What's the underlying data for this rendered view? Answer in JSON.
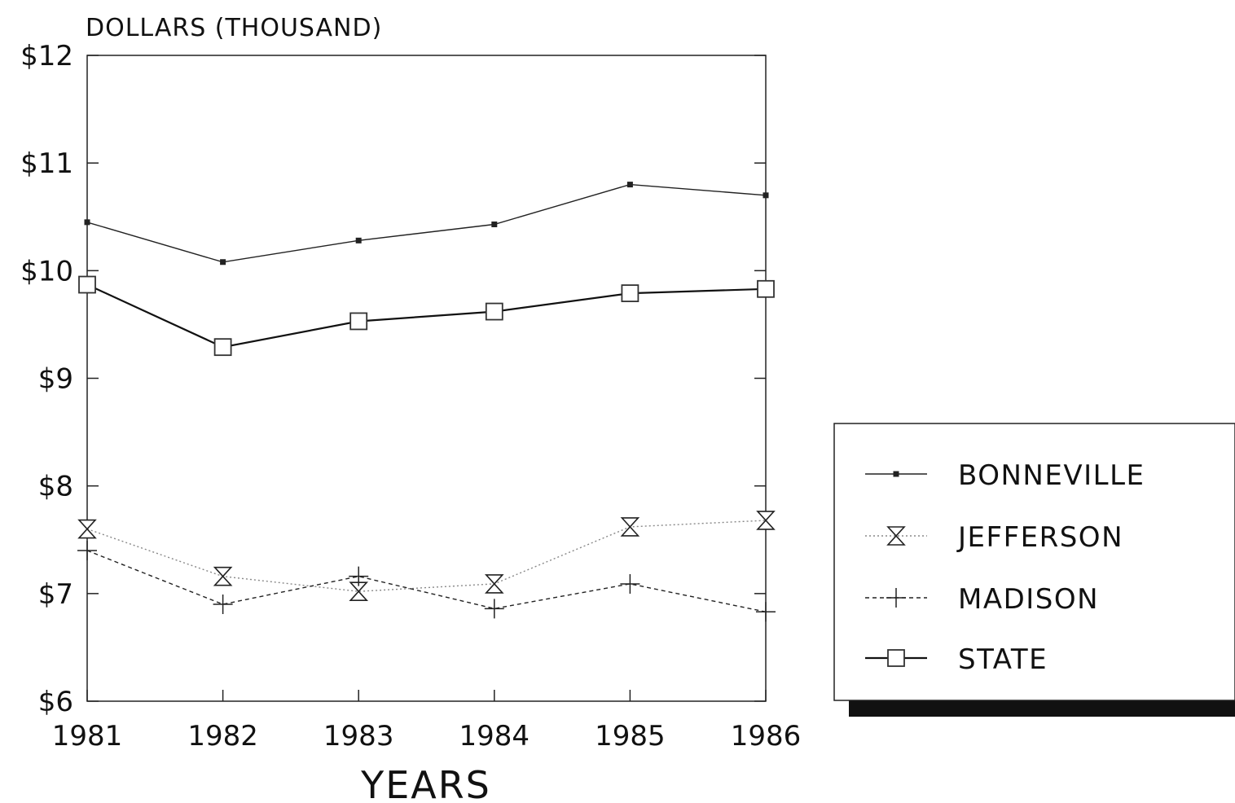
{
  "chart_data": {
    "type": "line",
    "title": "",
    "ylabel": "DOLLARS (THOUSAND)",
    "xlabel": "YEARS",
    "x": [
      1981,
      1982,
      1983,
      1984,
      1985,
      1986
    ],
    "x_tick_labels": [
      "1981",
      "1982",
      "1983",
      "1984",
      "1985",
      "1986"
    ],
    "ylim": [
      6,
      12
    ],
    "y_ticks": [
      6,
      7,
      8,
      9,
      10,
      11,
      12
    ],
    "y_tick_labels": [
      "$6",
      "$7",
      "$8",
      "$9",
      "$10",
      "$11",
      "$12"
    ],
    "grid": false,
    "legend_position": "right",
    "series": [
      {
        "name": "BONNEVILLE",
        "values": [
          10.45,
          10.08,
          10.28,
          10.43,
          10.8,
          10.7
        ],
        "marker": "small-square",
        "line": "solid",
        "color": "#222222"
      },
      {
        "name": "JEFFERSON",
        "values": [
          7.6,
          7.16,
          7.02,
          7.09,
          7.62,
          7.68
        ],
        "marker": "hourglass",
        "line": "dotted-light",
        "color": "#888888"
      },
      {
        "name": "MADISON",
        "values": [
          7.4,
          6.9,
          7.16,
          6.86,
          7.09,
          6.83
        ],
        "marker": "plus",
        "line": "dashed",
        "color": "#222222"
      },
      {
        "name": "STATE",
        "values": [
          9.87,
          9.29,
          9.53,
          9.62,
          9.79,
          9.83
        ],
        "marker": "open-square",
        "line": "solid-bold",
        "color": "#111111"
      }
    ]
  }
}
